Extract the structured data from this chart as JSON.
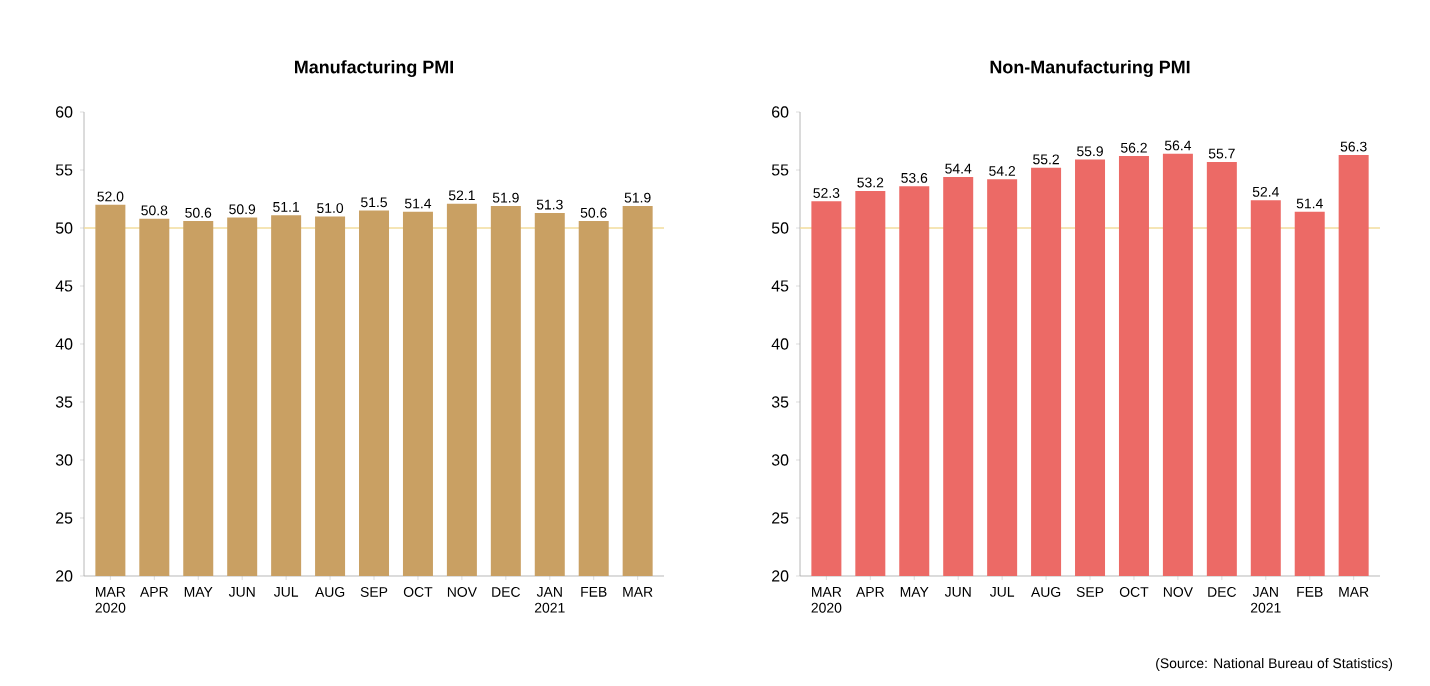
{
  "chart_data": [
    {
      "type": "bar",
      "title": "Manufacturing PMI",
      "categories": [
        "MAR 2020",
        "APR",
        "MAY",
        "JUN",
        "JUL",
        "AUG",
        "SEP",
        "OCT",
        "NOV",
        "DEC",
        "JAN 2021",
        "FEB",
        "MAR"
      ],
      "values": [
        52.0,
        50.8,
        50.6,
        50.9,
        51.1,
        51.0,
        51.5,
        51.4,
        52.1,
        51.9,
        51.3,
        50.6,
        51.9
      ],
      "color": "#c9a063",
      "value_labels": [
        "52.0",
        "50.8",
        "50.6",
        "50.9",
        "51.1",
        "51.0",
        "51.5",
        "51.4",
        "52.1",
        "51.9",
        "51.3",
        "50.6",
        "51.9"
      ],
      "ylim": [
        20,
        60
      ],
      "yticks": [
        20,
        25,
        30,
        35,
        40,
        45,
        50,
        55,
        60
      ],
      "ref_lines": [
        {
          "axis": "y",
          "value": 50,
          "color": "#f2dc9c"
        }
      ]
    },
    {
      "type": "bar",
      "title": "Non-Manufacturing PMI",
      "categories": [
        "MAR 2020",
        "APR",
        "MAY",
        "JUN",
        "JUL",
        "AUG",
        "SEP",
        "OCT",
        "NOV",
        "DEC",
        "JAN 2021",
        "FEB",
        "MAR"
      ],
      "values": [
        52.3,
        53.2,
        53.6,
        54.4,
        54.2,
        55.2,
        55.9,
        56.2,
        56.4,
        55.7,
        52.4,
        51.4,
        56.3
      ],
      "color": "#ec6a66",
      "value_labels": [
        "52.3",
        "53.2",
        "53.6",
        "54.4",
        "54.2",
        "55.2",
        "55.9",
        "56.2",
        "56.4",
        "55.7",
        "52.4",
        "51.4",
        "56.3"
      ],
      "ylim": [
        20,
        60
      ],
      "yticks": [
        20,
        25,
        30,
        35,
        40,
        45,
        50,
        55,
        60
      ],
      "ref_lines": [
        {
          "axis": "y",
          "value": 50,
          "color": "#f2dc9c"
        }
      ],
      "annotations": [
        "(Source: National Bureau of Statistics)"
      ]
    }
  ]
}
